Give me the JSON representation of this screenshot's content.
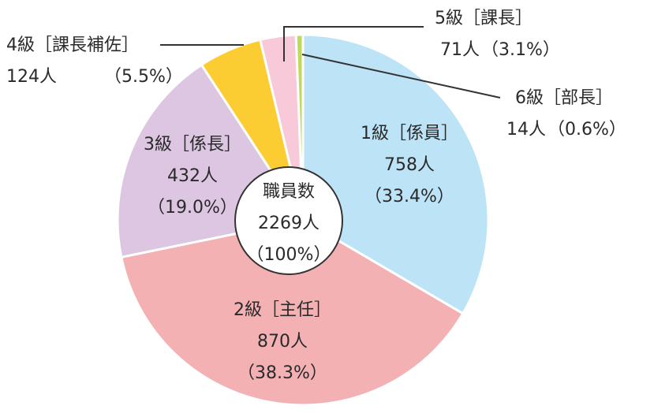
{
  "chart_data": {
    "type": "pie",
    "start_angle_deg": 0,
    "direction": "clockwise",
    "center_label": {
      "title": "職員数",
      "value": "2269人",
      "percent": "（100%）"
    },
    "slices": [
      {
        "name": "1級［係員］",
        "count": "758人",
        "percent_text": "（33.4%）",
        "value": 33.4,
        "color": "#bde3f6"
      },
      {
        "name": "2級［主任］",
        "count": "870人",
        "percent_text": "（38.3%）",
        "value": 38.3,
        "color": "#f4b1b4"
      },
      {
        "name": "3級［係長］",
        "count": "432人",
        "percent_text": "（19.0%）",
        "value": 19.0,
        "color": "#dcc6e2"
      },
      {
        "name": "4級［課長補佐］",
        "count": "124人",
        "percent_text": "（5.5%）",
        "value": 5.5,
        "color": "#fbcd32"
      },
      {
        "name": "5級［課長］",
        "count": "71人",
        "percent_text": "（3.1%）",
        "value": 3.1,
        "color": "#f7c9d9"
      },
      {
        "name": "6級［部長］",
        "count": "14人",
        "percent_text": "（0.6%）",
        "value": 0.6,
        "color": "#c2d85a"
      }
    ]
  }
}
